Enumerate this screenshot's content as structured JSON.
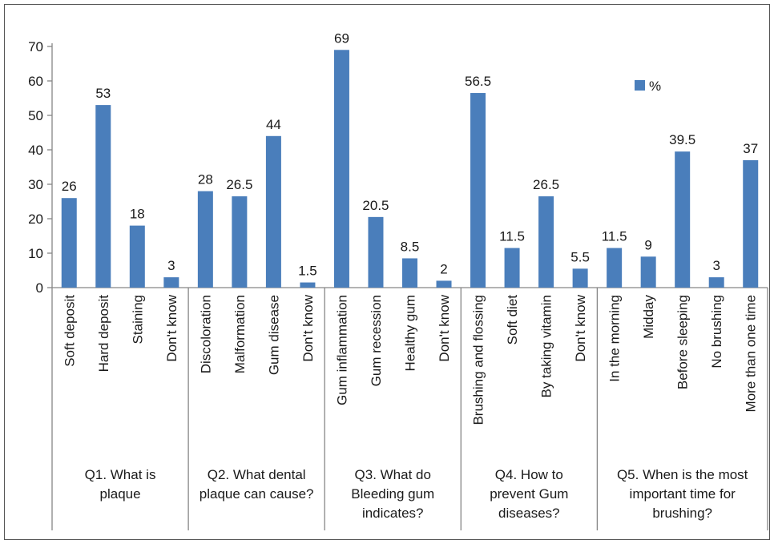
{
  "colors": {
    "bar": "#4a7ebb",
    "axis": "#868686",
    "frame": "#555555",
    "text": "#1a1a1a"
  },
  "chart_data": {
    "type": "bar",
    "title": "",
    "xlabel": "",
    "ylabel": "",
    "ylim": [
      0,
      70
    ],
    "yticks": [
      0,
      10,
      20,
      30,
      40,
      50,
      60,
      70
    ],
    "grid": false,
    "legend": {
      "position": "top-right",
      "entries": [
        "%"
      ]
    },
    "groups": [
      {
        "label": [
          "Q1. What is",
          "plaque"
        ],
        "categories": [
          "Soft deposit",
          "Hard deposit",
          "Staining",
          "Don't know"
        ]
      },
      {
        "label": [
          "Q2. What dental",
          "plaque can cause?"
        ],
        "categories": [
          "Discoloration",
          "Malformation",
          "Gum disease",
          "Don't know"
        ]
      },
      {
        "label": [
          "Q3. What do",
          "Bleeding gum",
          "indicates?"
        ],
        "categories": [
          "Gum inflammation",
          "Gum recession",
          "Healthy gum",
          "Don't know"
        ]
      },
      {
        "label": [
          "Q4. How to",
          "prevent Gum",
          "diseases?"
        ],
        "categories": [
          "Brushing and flossing",
          "Soft diet",
          "By taking vitamin",
          "Don't know"
        ]
      },
      {
        "label": [
          "Q5. When is the most",
          "important time for",
          "brushing?"
        ],
        "categories": [
          "In the morning",
          "Midday",
          "Before sleeping",
          "No brushing",
          "More than one time"
        ]
      }
    ],
    "series": [
      {
        "name": "%",
        "values": [
          26,
          53,
          18,
          3,
          28,
          26.5,
          44,
          1.5,
          69,
          20.5,
          8.5,
          2,
          56.5,
          11.5,
          26.5,
          5.5,
          11.5,
          9,
          39.5,
          3,
          37
        ],
        "labels": [
          "26",
          "53",
          "18",
          "3",
          "28",
          "26.5",
          "44",
          "1.5",
          "69",
          "20.5",
          "8.5",
          "2",
          "56.5",
          "11.5",
          "26.5",
          "5.5",
          "11.5",
          "9",
          "39.5",
          "3",
          "37"
        ]
      }
    ]
  }
}
